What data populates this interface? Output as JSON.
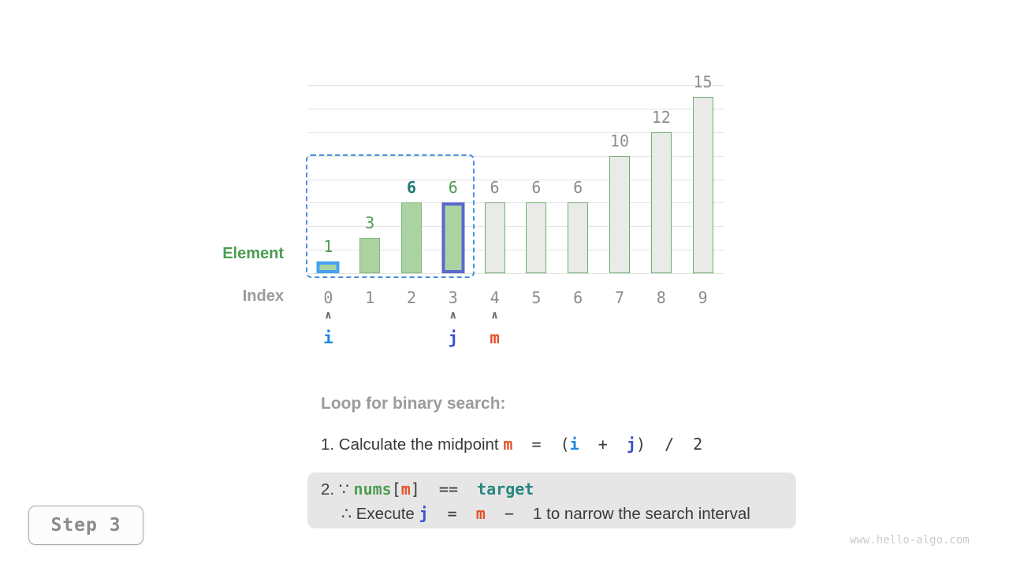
{
  "colors": {
    "i_pointer": "#1e88e5",
    "j_pointer": "#3b50ce",
    "m_pointer": "#e4502a",
    "nums_green": "#4b9e50",
    "target_teal": "#27867e",
    "element_green": "#4a9d4f",
    "teal_value": "#1b7b72",
    "bar_green_fill": "#abd3a2",
    "bar_green_border": "#82b77a",
    "bar_gray_fill": "#eaeae8",
    "bar_gray_border": "#6fae6f",
    "bar_i_border": "#45a1ef",
    "bar_j_border": "#5a68cd",
    "interval_blue": "#4a90e2",
    "gridline": "#e3e3e3",
    "gray_text": "#8d8d8d",
    "heading_gray": "#9b9b9b",
    "dark_text": "#3a3a3a"
  },
  "chart_data": {
    "type": "bar",
    "title": "",
    "categories": [
      "0",
      "1",
      "2",
      "3",
      "4",
      "5",
      "6",
      "7",
      "8",
      "9"
    ],
    "values": [
      1,
      3,
      6,
      6,
      6,
      6,
      6,
      10,
      12,
      15
    ],
    "xlabel": "Index",
    "ylabel": "Element",
    "ylim": [
      0,
      16
    ],
    "gridline_step": 2,
    "grid": true,
    "element_row_label": "Element",
    "index_row_label": "Index",
    "bars": [
      {
        "index": "0",
        "value": 1,
        "variant": "in",
        "highlight": "i",
        "label_style": "green"
      },
      {
        "index": "1",
        "value": 3,
        "variant": "in",
        "highlight": null,
        "label_style": "green"
      },
      {
        "index": "2",
        "value": 6,
        "variant": "in",
        "highlight": null,
        "label_style": "teal"
      },
      {
        "index": "3",
        "value": 6,
        "variant": "in",
        "highlight": "j",
        "label_style": "green"
      },
      {
        "index": "4",
        "value": 6,
        "variant": "out",
        "highlight": null,
        "label_style": "gray"
      },
      {
        "index": "5",
        "value": 6,
        "variant": "out",
        "highlight": null,
        "label_style": "gray"
      },
      {
        "index": "6",
        "value": 6,
        "variant": "out",
        "highlight": null,
        "label_style": "gray"
      },
      {
        "index": "7",
        "value": 10,
        "variant": "out",
        "highlight": null,
        "label_style": "gray"
      },
      {
        "index": "8",
        "value": 12,
        "variant": "out",
        "highlight": null,
        "label_style": "gray"
      },
      {
        "index": "9",
        "value": 15,
        "variant": "out",
        "highlight": null,
        "label_style": "gray"
      }
    ],
    "pointers": [
      {
        "slot": 0,
        "label": "i",
        "color": "#1e88e5"
      },
      {
        "slot": 3,
        "label": "j",
        "color": "#3b50ce"
      },
      {
        "slot": 4,
        "label": "m",
        "color": "#e4502a"
      }
    ],
    "caret_glyph": "∧",
    "interval": {
      "start": 0,
      "end": 3
    }
  },
  "caption": {
    "heading": "Loop for binary search:",
    "line1": {
      "prefix": "1. Calculate the midpoint ",
      "m": "m",
      "eq_open": "  =  (",
      "i": "i",
      "plus": "  +  ",
      "j": "j",
      "close_div": ")  /  2"
    },
    "box": {
      "line1": {
        "prefix": "2. ∵ ",
        "nums": "nums",
        "open_bracket": "[",
        "m": "m",
        "close_bracket": "]",
        "eq": "  ==  ",
        "target": "target"
      },
      "line2": {
        "prefix": "∴ Execute ",
        "j": "j",
        "eq": "  =  ",
        "m": "m",
        "minus": "  −  ",
        "tail": "1 to narrow the search interval"
      }
    }
  },
  "step_badge": "Step 3",
  "watermark": "www.hello-algo.com"
}
